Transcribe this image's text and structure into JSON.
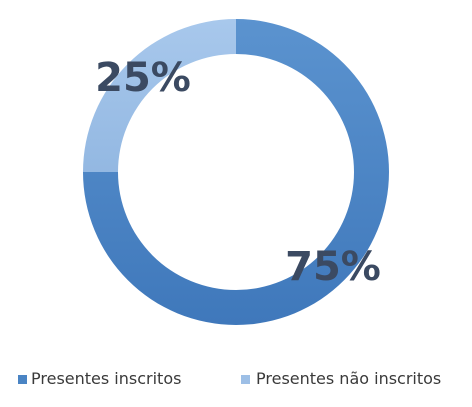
{
  "chart_data": {
    "type": "pie",
    "variant": "donut",
    "title": "",
    "categories": [
      "Presentes inscritos",
      "Presentes não inscritos"
    ],
    "values": [
      75,
      25
    ],
    "labels": [
      "75%",
      "25%"
    ],
    "colors": [
      "#4a84c4",
      "#9dbfe6"
    ],
    "legend": {
      "position": "bottom",
      "entries": [
        "Presentes inscritos",
        "Presentes não inscritos"
      ]
    }
  }
}
